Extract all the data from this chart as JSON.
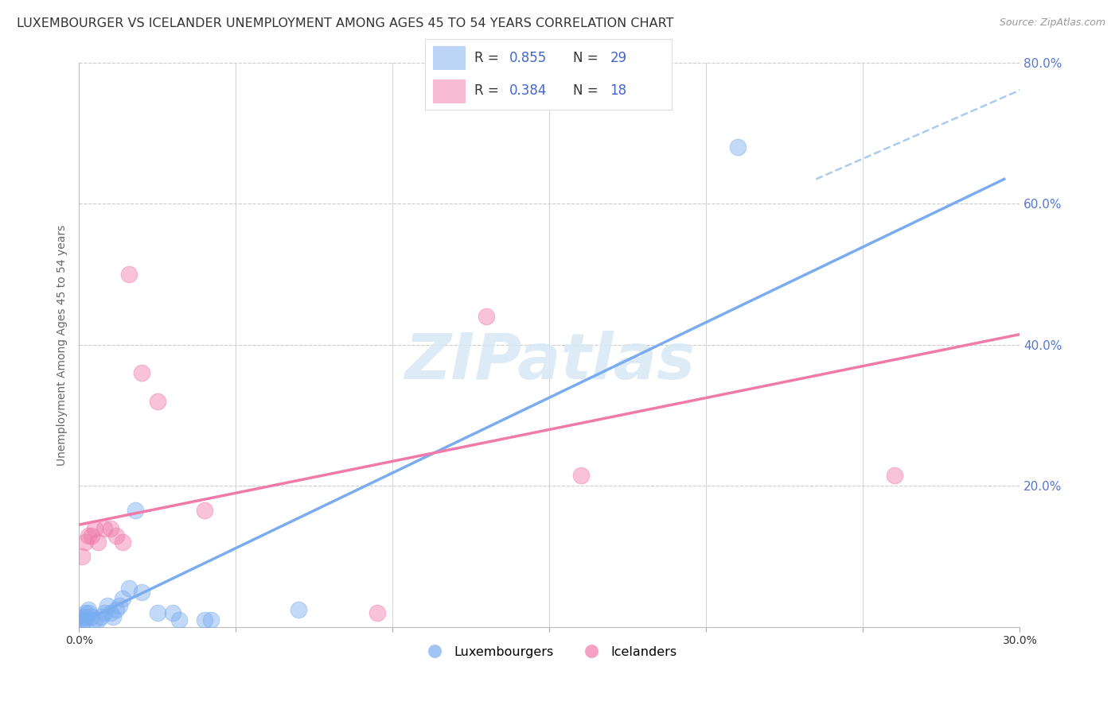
{
  "title": "LUXEMBOURGER VS ICELANDER UNEMPLOYMENT AMONG AGES 45 TO 54 YEARS CORRELATION CHART",
  "source": "Source: ZipAtlas.com",
  "ylabel": "Unemployment Among Ages 45 to 54 years",
  "xlim": [
    0.0,
    0.3
  ],
  "ylim": [
    0.0,
    0.8
  ],
  "yticks": [
    0.0,
    0.2,
    0.4,
    0.6,
    0.8
  ],
  "xticks": [
    0.0,
    0.05,
    0.1,
    0.15,
    0.2,
    0.25,
    0.3
  ],
  "right_ytick_labels": [
    "20.0%",
    "40.0%",
    "60.0%",
    "80.0%"
  ],
  "right_ytick_vals": [
    0.2,
    0.4,
    0.6,
    0.8
  ],
  "blue_scatter_x": [
    0.001,
    0.001,
    0.001,
    0.002,
    0.002,
    0.002,
    0.003,
    0.003,
    0.004,
    0.005,
    0.006,
    0.007,
    0.008,
    0.009,
    0.01,
    0.011,
    0.012,
    0.013,
    0.014,
    0.016,
    0.018,
    0.02,
    0.025,
    0.03,
    0.032,
    0.04,
    0.042,
    0.07,
    0.21
  ],
  "blue_scatter_y": [
    0.005,
    0.01,
    0.015,
    0.01,
    0.015,
    0.02,
    0.02,
    0.025,
    0.015,
    0.01,
    0.01,
    0.015,
    0.02,
    0.03,
    0.02,
    0.015,
    0.025,
    0.03,
    0.04,
    0.055,
    0.165,
    0.05,
    0.02,
    0.02,
    0.01,
    0.01,
    0.01,
    0.025,
    0.68
  ],
  "pink_scatter_x": [
    0.001,
    0.002,
    0.003,
    0.004,
    0.005,
    0.006,
    0.008,
    0.01,
    0.012,
    0.014,
    0.016,
    0.02,
    0.025,
    0.04,
    0.095,
    0.13,
    0.16,
    0.26
  ],
  "pink_scatter_y": [
    0.1,
    0.12,
    0.13,
    0.13,
    0.14,
    0.12,
    0.14,
    0.14,
    0.13,
    0.12,
    0.5,
    0.36,
    0.32,
    0.165,
    0.02,
    0.44,
    0.215,
    0.215
  ],
  "blue_line_x": [
    0.0,
    0.295
  ],
  "blue_line_y": [
    0.005,
    0.635
  ],
  "pink_line_x": [
    0.0,
    0.3
  ],
  "pink_line_y": [
    0.145,
    0.415
  ],
  "dashed_line_x": [
    0.235,
    0.32
  ],
  "dashed_line_y": [
    0.635,
    0.8
  ],
  "blue_color": "#7aacf0",
  "pink_color": "#f07aaa",
  "dashed_color": "#aaccee",
  "legend_label_blue": "Luxembourgers",
  "legend_label_pink": "Icelanders",
  "legend_R_blue": "0.855",
  "legend_N_blue": "29",
  "legend_R_pink": "0.384",
  "legend_N_pink": "18",
  "title_fontsize": 11.5,
  "axis_label_fontsize": 10,
  "tick_fontsize": 10,
  "watermark": "ZIPatlas",
  "background_color": "#ffffff",
  "grid_color": "#cccccc",
  "right_axis_color": "#5577cc",
  "title_color": "#333333",
  "legend_text_color": "#4466cc",
  "legend_label_color": "#555555"
}
